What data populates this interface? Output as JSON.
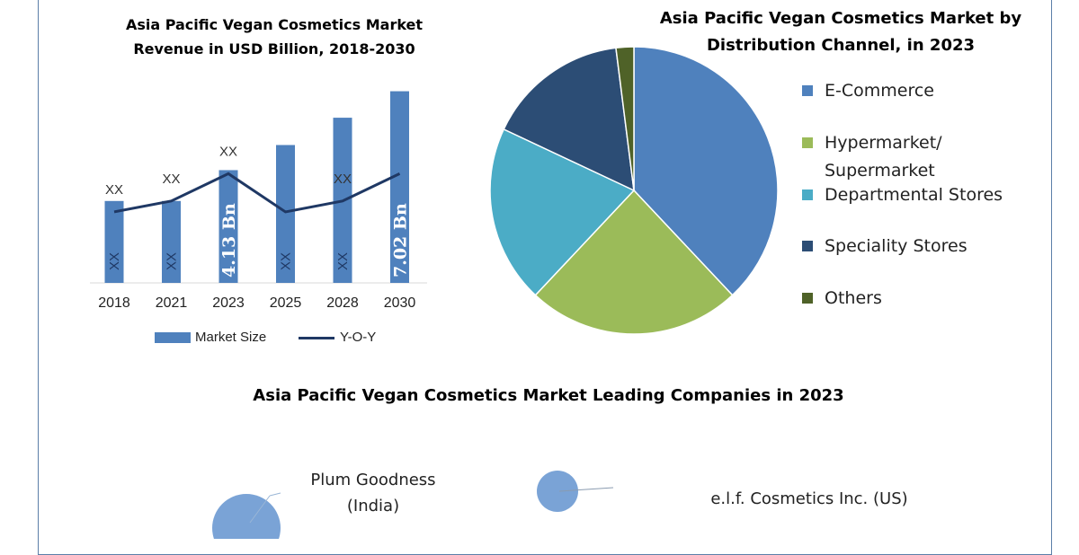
{
  "bar_chart_title": "Asia Pacific Vegan Cosmetics Market Revenue in USD Billion, 2018-2030",
  "pie_chart_title": "Asia Pacific Vegan Cosmetics Market by Distribution Channel, in 2023",
  "companies_title": "Asia Pacific Vegan Cosmetics Market Leading Companies in 2023",
  "colors": {
    "bar": "#4f81bd",
    "line": "#1f3864",
    "frame": "#5b7fa8",
    "bubble": "#7aa3d6"
  },
  "chart_data": [
    {
      "type": "bar",
      "title": "Asia Pacific Vegan Cosmetics Market Revenue in USD Billion, 2018-2030",
      "categories": [
        "2018",
        "2021",
        "2023",
        "2025",
        "2028",
        "2030"
      ],
      "series": [
        {
          "name": "Market Size",
          "kind": "bar",
          "values": [
            3.0,
            3.0,
            4.13,
            5.05,
            6.05,
            7.02
          ],
          "data_labels": [
            "XX",
            "XX",
            "4.13 Bn",
            "XX",
            "XX",
            "7.02 Bn"
          ]
        },
        {
          "name": "Y-O-Y",
          "kind": "line",
          "values": [
            2.6,
            3.0,
            4.0,
            2.6,
            3.0,
            4.0
          ],
          "data_labels": [
            "XX",
            "XX",
            "XX",
            "",
            "XX",
            ""
          ]
        }
      ],
      "ylim": [
        0,
        7.5
      ],
      "legend": "bottom"
    },
    {
      "type": "pie",
      "title": "Asia Pacific Vegan Cosmetics Market by Distribution Channel, in 2023",
      "labels": [
        "E-Commerce",
        "Hypermarket/ Supermarket",
        "Departmental Stores",
        "Speciality Stores",
        "Others"
      ],
      "values": [
        38,
        24,
        20,
        16,
        2
      ],
      "colors": [
        "#4f81bd",
        "#9bbb59",
        "#4bacc6",
        "#2c4d75",
        "#4f6228"
      ],
      "legend": "right"
    }
  ],
  "legend": {
    "pie_items": [
      {
        "label_line1": "E-Commerce",
        "label_line2": ""
      },
      {
        "label_line1": "Hypermarket/",
        "label_line2": "Supermarket"
      },
      {
        "label_line1": "Departmental Stores",
        "label_line2": ""
      },
      {
        "label_line1": "Speciality Stores",
        "label_line2": ""
      },
      {
        "label_line1": "Others",
        "label_line2": ""
      }
    ],
    "bar_items": {
      "bar": "Market Size",
      "line": "Y-O-Y"
    }
  },
  "companies": [
    {
      "line1": "Plum Goodness",
      "line2": "(India)"
    },
    {
      "line1": "e.l.f. Cosmetics Inc. (US)",
      "line2": ""
    }
  ]
}
